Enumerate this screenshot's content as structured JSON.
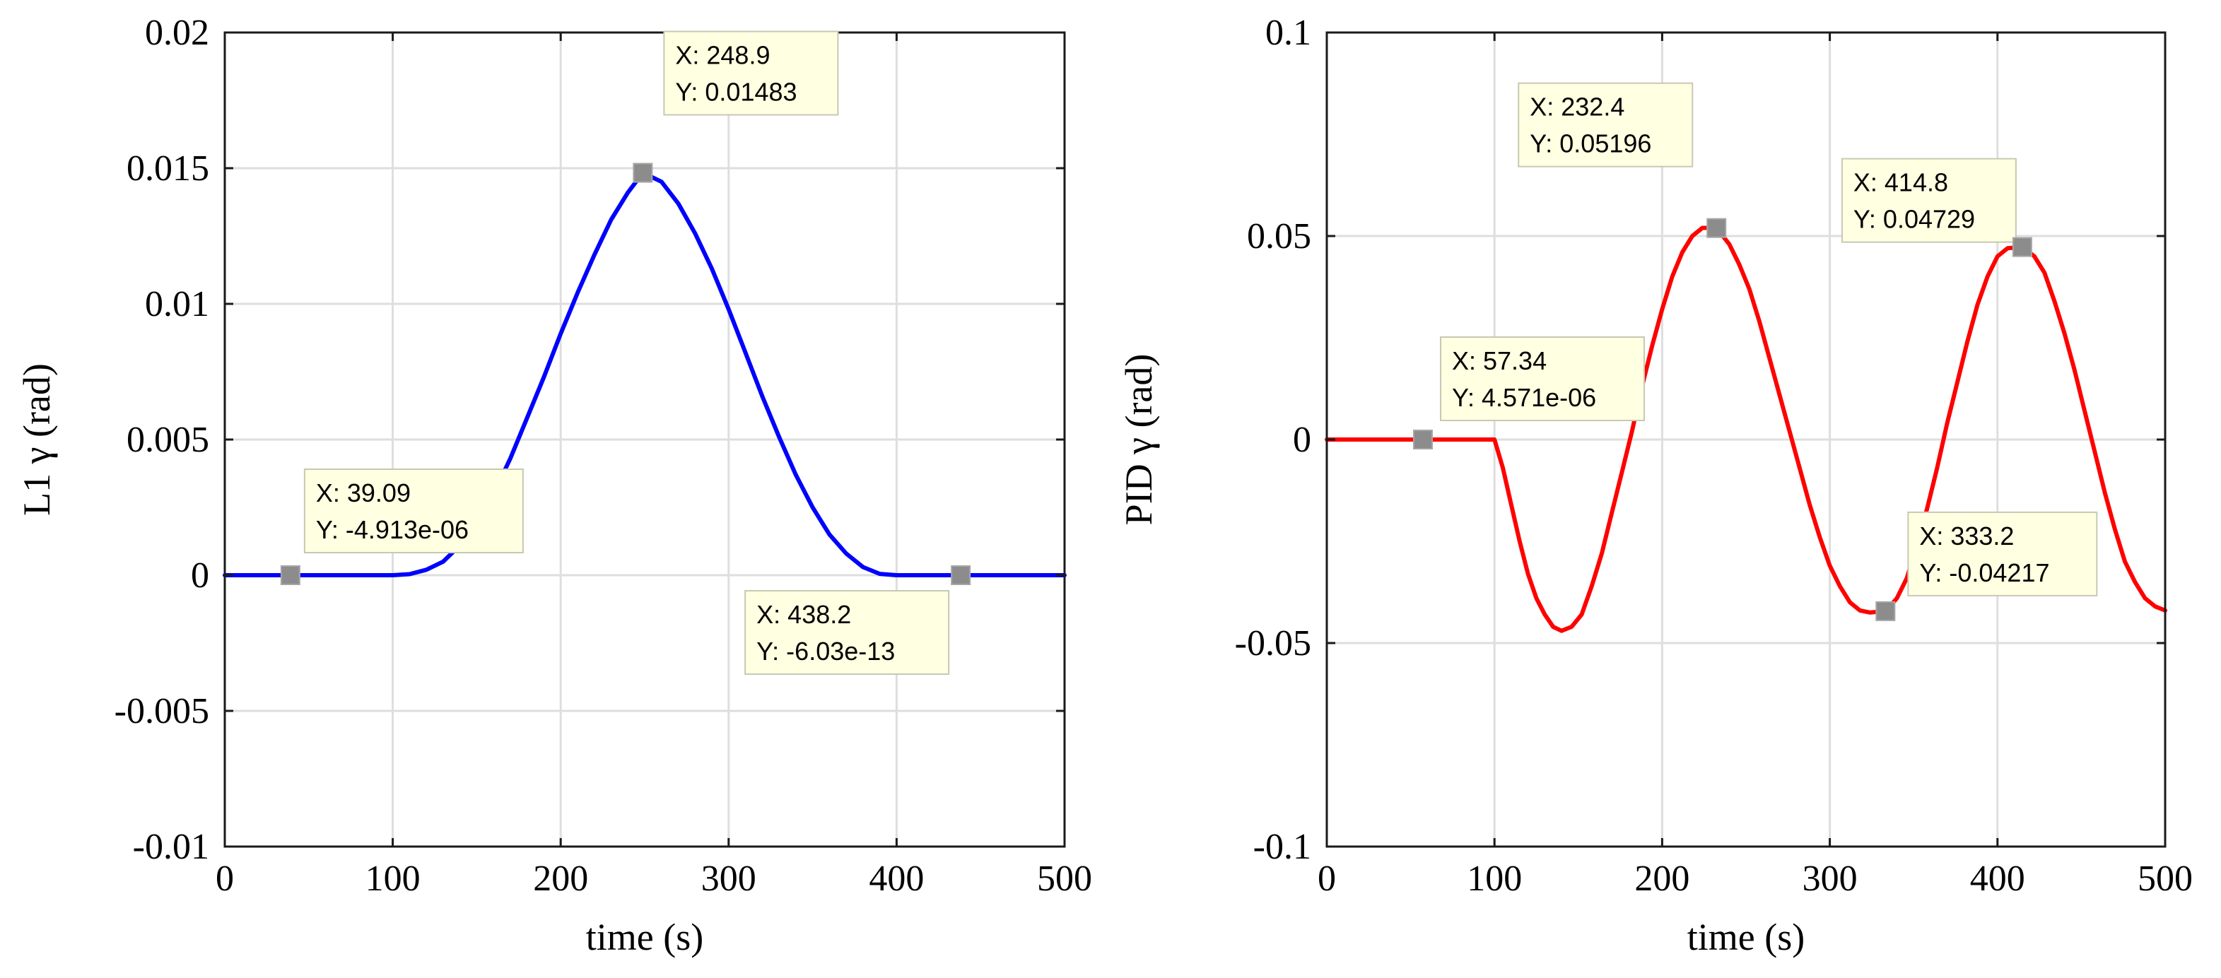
{
  "chart_data": [
    {
      "type": "line",
      "xlabel": "time (s)",
      "ylabel": "L1 γ (rad)",
      "xlim": [
        0,
        500
      ],
      "ylim": [
        -0.01,
        0.02
      ],
      "xticks": [
        0,
        100,
        200,
        300,
        400,
        500
      ],
      "xtick_labels": [
        "0",
        "100",
        "200",
        "300",
        "400",
        "500"
      ],
      "yticks": [
        -0.01,
        -0.005,
        0,
        0.005,
        0.01,
        0.015,
        0.02
      ],
      "ytick_labels": [
        "-0.01",
        "-0.005",
        "0",
        "0.005",
        "0.01",
        "0.015",
        "0.02"
      ],
      "grid": true,
      "series": [
        {
          "name": "L1",
          "color": "#0000ff",
          "x": [
            0,
            100,
            110,
            120,
            130,
            140,
            150,
            160,
            170,
            180,
            190,
            200,
            210,
            220,
            230,
            240,
            248.9,
            260,
            270,
            280,
            290,
            300,
            310,
            320,
            330,
            340,
            350,
            360,
            370,
            380,
            390,
            400,
            500
          ],
          "y": [
            0,
            0,
            4e-05,
            0.0002,
            0.0005,
            0.0011,
            0.0019,
            0.003,
            0.0043,
            0.0058,
            0.0073,
            0.0089,
            0.0104,
            0.0118,
            0.0131,
            0.0141,
            0.01483,
            0.0145,
            0.0137,
            0.0126,
            0.0113,
            0.0098,
            0.0082,
            0.0066,
            0.0051,
            0.0037,
            0.0025,
            0.0015,
            0.0008,
            0.0003,
            5e-05,
            0,
            0
          ]
        }
      ],
      "datatips": [
        {
          "x": 39.09,
          "y": 0,
          "line1": "X: 39.09",
          "line2": "Y: -4.913e-06"
        },
        {
          "x": 248.9,
          "y": 0.01483,
          "line1": "X: 248.9",
          "line2": "Y: 0.01483"
        },
        {
          "x": 438.2,
          "y": 0,
          "line1": "X: 438.2",
          "line2": "Y: -6.03e-13"
        }
      ]
    },
    {
      "type": "line",
      "xlabel": "time (s)",
      "ylabel": "PID γ (rad)",
      "xlim": [
        0,
        500
      ],
      "ylim": [
        -0.1,
        0.1
      ],
      "xticks": [
        0,
        100,
        200,
        300,
        400,
        500
      ],
      "xtick_labels": [
        "0",
        "100",
        "200",
        "300",
        "400",
        "500"
      ],
      "yticks": [
        -0.1,
        -0.05,
        0,
        0.05,
        0.1
      ],
      "ytick_labels": [
        "-0.1",
        "-0.05",
        "0",
        "0.05",
        "0.1"
      ],
      "grid": true,
      "series": [
        {
          "name": "PID",
          "color": "#ff0000",
          "x": [
            0,
            100,
            105,
            110,
            115,
            120,
            125,
            130,
            135,
            140,
            146,
            152,
            158,
            164,
            170,
            176,
            182,
            188,
            194,
            200,
            206,
            212,
            218,
            224,
            232.4,
            240,
            246,
            252,
            258,
            264,
            270,
            276,
            282,
            288,
            294,
            300,
            306,
            312,
            318,
            324,
            333.2,
            340,
            346,
            352,
            358,
            364,
            370,
            376,
            382,
            388,
            394,
            400,
            406,
            414.8,
            422,
            428,
            434,
            440,
            446,
            452,
            458,
            464,
            470,
            476,
            482,
            488,
            494,
            500
          ],
          "y": [
            0,
            0,
            -0.007,
            -0.016,
            -0.025,
            -0.033,
            -0.039,
            -0.043,
            -0.046,
            -0.047,
            -0.046,
            -0.043,
            -0.036,
            -0.028,
            -0.018,
            -0.008,
            0.002,
            0.013,
            0.023,
            0.032,
            0.04,
            0.046,
            0.05,
            0.052,
            0.05196,
            0.048,
            0.043,
            0.037,
            0.029,
            0.02,
            0.011,
            0.002,
            -0.007,
            -0.016,
            -0.024,
            -0.031,
            -0.036,
            -0.04,
            -0.042,
            -0.0425,
            -0.04217,
            -0.039,
            -0.034,
            -0.026,
            -0.017,
            -0.007,
            0.004,
            0.014,
            0.024,
            0.033,
            0.04,
            0.045,
            0.047,
            0.04729,
            0.045,
            0.041,
            0.034,
            0.026,
            0.017,
            0.007,
            -0.003,
            -0.013,
            -0.022,
            -0.03,
            -0.035,
            -0.039,
            -0.041,
            -0.042
          ]
        }
      ],
      "datatips": [
        {
          "x": 57.34,
          "y": 0,
          "line1": "X: 57.34",
          "line2": "Y: 4.571e-06"
        },
        {
          "x": 232.4,
          "y": 0.05196,
          "line1": "X: 232.4",
          "line2": "Y: 0.05196"
        },
        {
          "x": 333.2,
          "y": -0.04217,
          "line1": "X: 333.2",
          "line2": "Y: -0.04217"
        },
        {
          "x": 414.8,
          "y": 0.04729,
          "line1": "X: 414.8",
          "line2": "Y: 0.04729"
        }
      ]
    }
  ]
}
